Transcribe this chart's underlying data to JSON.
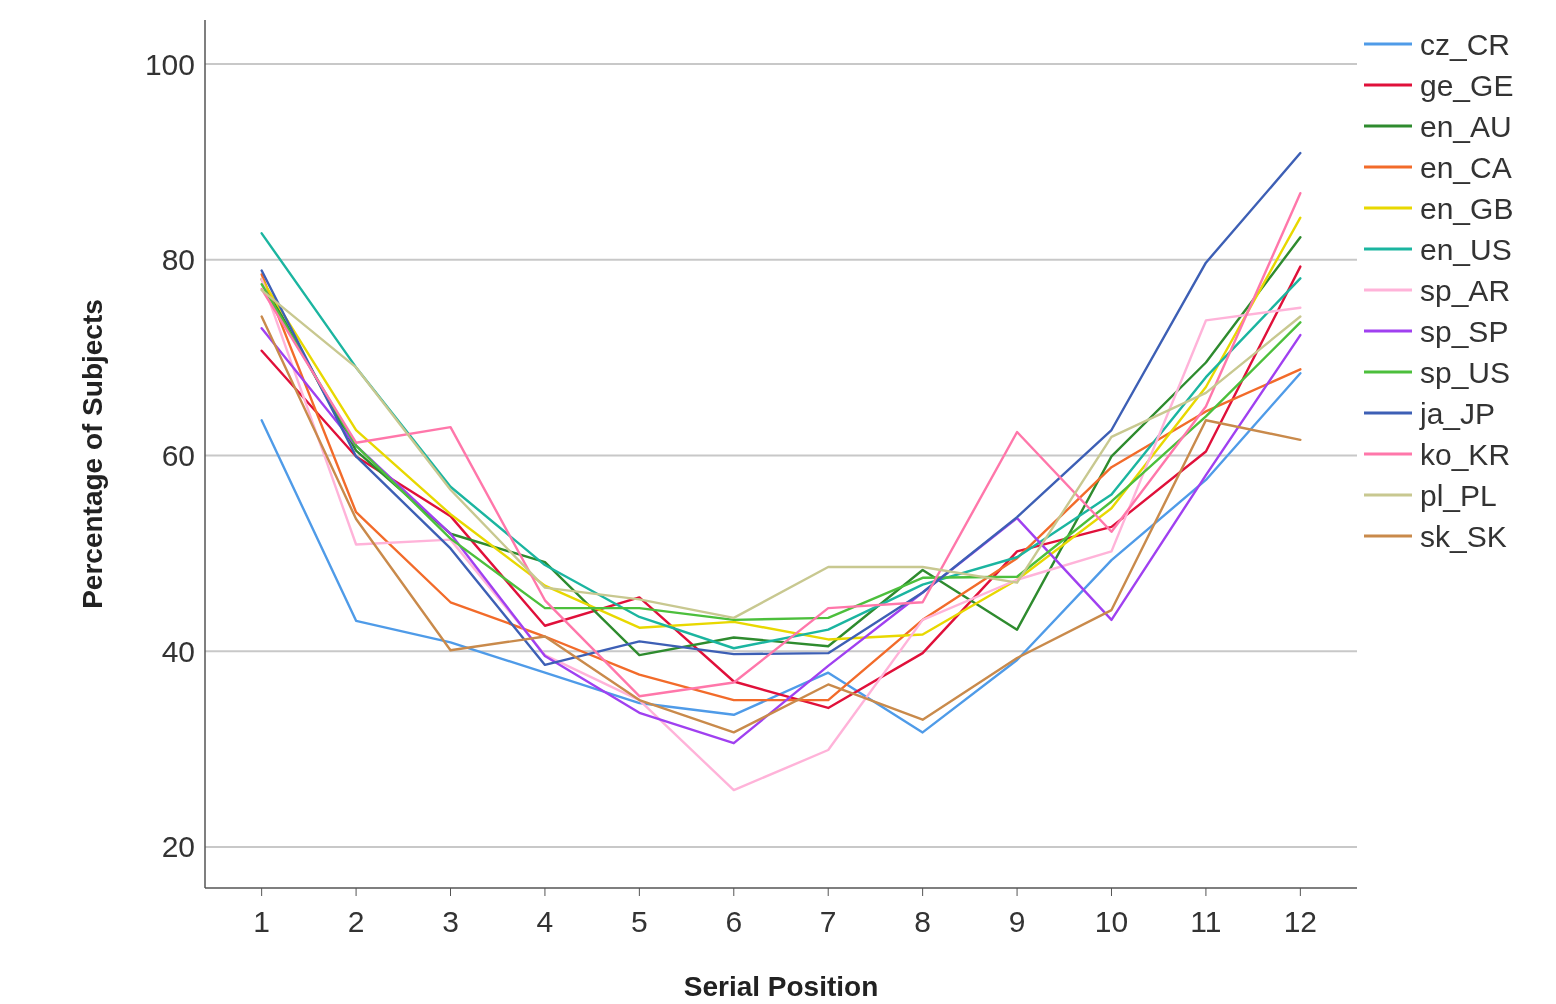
{
  "chart_data": {
    "type": "line",
    "xlabel": "Serial Position",
    "ylabel": "Percentage of Subjects",
    "x": [
      1,
      2,
      3,
      4,
      5,
      6,
      7,
      8,
      9,
      10,
      11,
      12
    ],
    "xlim": [
      0.4,
      12.6
    ],
    "xticks": [
      1,
      2,
      3,
      4,
      5,
      6,
      7,
      8,
      9,
      10,
      11,
      12
    ],
    "ylim": [
      15.8,
      104.5
    ],
    "yticks": [
      20,
      40,
      60,
      80,
      100
    ],
    "grid": "y",
    "legend": "top right",
    "marker": "none",
    "line_style": "solid",
    "series": [
      {
        "name": "cz_CR",
        "color": "#4f9be8",
        "values": [
          63.6,
          43.1,
          40.9,
          37.8,
          34.7,
          33.5,
          37.8,
          31.7,
          39.1,
          49.3,
          57.5,
          68.4
        ]
      },
      {
        "name": "ge_GE",
        "color": "#e0103a",
        "values": [
          70.7,
          59.9,
          53.8,
          42.6,
          45.5,
          36.9,
          34.2,
          39.8,
          50.2,
          52.7,
          60.4,
          79.3
        ]
      },
      {
        "name": "en_AU",
        "color": "#2e8b2e",
        "values": [
          78,
          60.5,
          52,
          49.1,
          39.6,
          41.4,
          40.5,
          48.3,
          42.2,
          59.9,
          69.5,
          82.3
        ]
      },
      {
        "name": "en_CA",
        "color": "#f26b2a",
        "values": [
          78.5,
          54.2,
          45,
          41.5,
          37.6,
          35,
          35,
          43.2,
          49.5,
          58.8,
          64.5,
          68.8
        ]
      },
      {
        "name": "en_GB",
        "color": "#e8d800",
        "values": [
          78,
          62.6,
          54,
          46.7,
          42.4,
          43,
          41.2,
          41.7,
          47.3,
          54.6,
          67,
          84.3
        ]
      },
      {
        "name": "en_US",
        "color": "#1bb5a0",
        "values": [
          82.7,
          69,
          56.8,
          48.8,
          43.5,
          40.3,
          42.2,
          46.8,
          49.6,
          56,
          68,
          78.1
        ]
      },
      {
        "name": "sp_AR",
        "color": "#ffb3d9",
        "values": [
          78,
          50.9,
          51.4,
          39.6,
          35,
          25.8,
          29.9,
          43.2,
          47.3,
          50.2,
          73.8,
          75.1
        ]
      },
      {
        "name": "sp_SP",
        "color": "#a040f0",
        "values": [
          73,
          61,
          52,
          39.5,
          33.7,
          30.6,
          38.5,
          46,
          53.6,
          43.2,
          58,
          72.3
        ]
      },
      {
        "name": "sp_US",
        "color": "#4cbf3c",
        "values": [
          77.5,
          61,
          51.5,
          44.4,
          44.4,
          43.2,
          43.4,
          47.5,
          47.6,
          55.3,
          64,
          73.6
        ]
      },
      {
        "name": "ja_JP",
        "color": "#3d5fb5",
        "values": [
          78.9,
          59.9,
          50.5,
          38.6,
          41,
          39.7,
          39.8,
          46,
          53.7,
          62.6,
          79.7,
          90.9
        ]
      },
      {
        "name": "ko_KR",
        "color": "#ff77aa",
        "values": [
          77,
          61.3,
          62.9,
          45.2,
          35.4,
          36.8,
          44.4,
          45,
          62.4,
          52.2,
          65,
          86.8
        ]
      },
      {
        "name": "pl_PL",
        "color": "#c8c890",
        "values": [
          76.9,
          69,
          56.5,
          46.5,
          45.3,
          43.4,
          48.6,
          48.6,
          47,
          61.9,
          66.4,
          74.2
        ]
      },
      {
        "name": "sk_SK",
        "color": "#c98a4b",
        "values": [
          74.2,
          53.5,
          40.1,
          41.5,
          35,
          31.7,
          36.6,
          33,
          39.3,
          44.2,
          63.6,
          61.6
        ]
      }
    ]
  }
}
